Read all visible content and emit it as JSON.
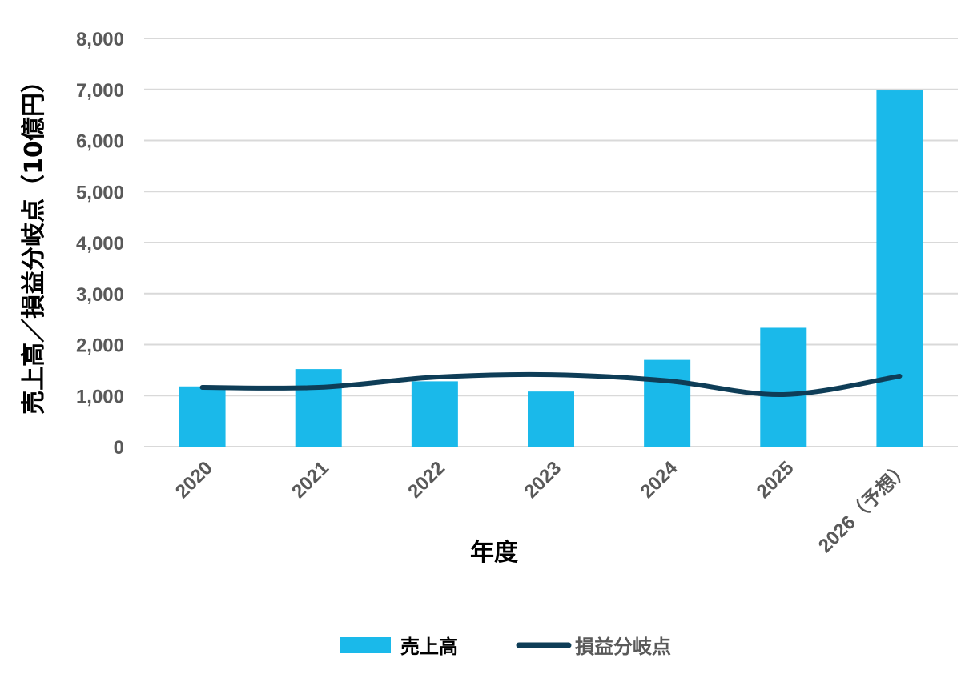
{
  "chart_data": {
    "type": "bar",
    "categories": [
      "2020",
      "2021",
      "2022",
      "2023",
      "2024",
      "2025",
      "2026（予想）"
    ],
    "series": [
      {
        "name": "売上高",
        "type": "bar",
        "color": "#1ab9ea",
        "values": [
          1180,
          1520,
          1280,
          1080,
          1700,
          2330,
          6980
        ]
      },
      {
        "name": "損益分岐点",
        "type": "line",
        "color": "#0e3d57",
        "values": [
          1160,
          1160,
          1360,
          1410,
          1290,
          1020,
          1380
        ]
      }
    ],
    "xlabel": "年度",
    "ylabel": "売上高／損益分岐点（10億円）",
    "ylim": [
      0,
      8000
    ],
    "yticks": [
      "0",
      "1,000",
      "2,000",
      "3,000",
      "4,000",
      "5,000",
      "6,000",
      "7,000",
      "8,000"
    ],
    "grid": true,
    "legend_position": "bottom",
    "colors": {
      "grid": "#d9d9d9",
      "tick_text": "#595959"
    }
  }
}
